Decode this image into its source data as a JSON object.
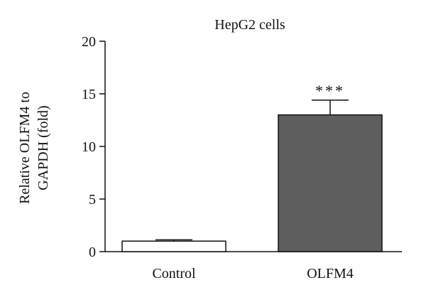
{
  "chart_data": {
    "type": "bar",
    "title": "HepG2 cells",
    "ylabel_lines": [
      "Relative OLFM4 to",
      "GAPDH (fold)"
    ],
    "categories": [
      "Control",
      "OLFM4"
    ],
    "values": [
      1.0,
      13.0
    ],
    "errors": [
      0.12,
      1.4
    ],
    "bar_colors": [
      "#ffffff",
      "#5e5e5e"
    ],
    "significance": [
      "",
      "***"
    ],
    "ylim": [
      0,
      20
    ],
    "yticks": [
      0,
      5,
      10,
      15,
      20
    ],
    "grid": false
  }
}
